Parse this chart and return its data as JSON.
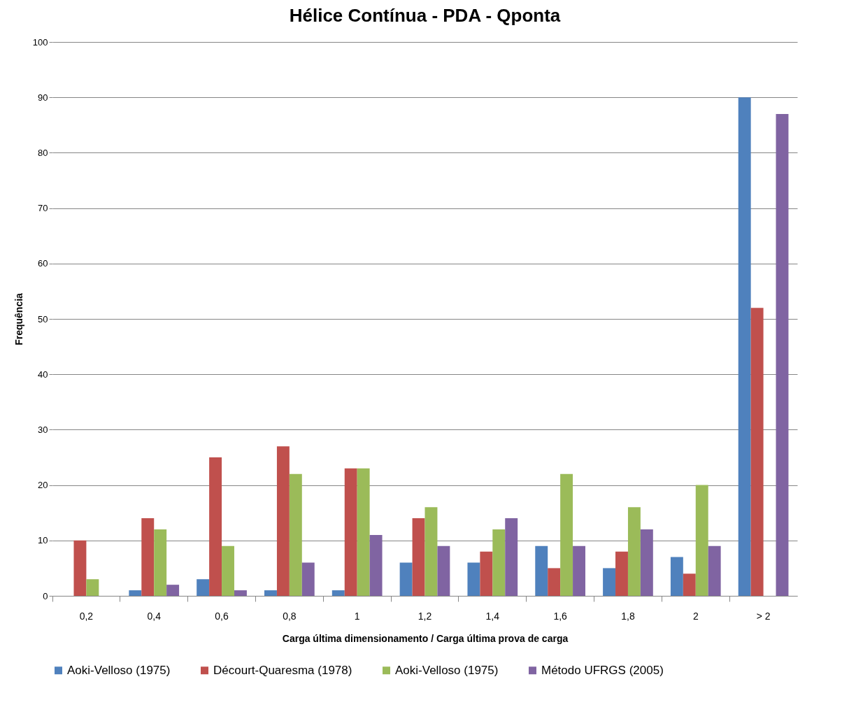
{
  "chart_data": {
    "type": "bar",
    "title": "Hélice Contínua - PDA - Qponta",
    "xlabel": "Carga última dimensionamento / Carga última prova de carga",
    "ylabel": "Frequência",
    "categories": [
      "0,2",
      "0,4",
      "0,6",
      "0,8",
      "1",
      "1,2",
      "1,4",
      "1,6",
      "1,8",
      "2",
      "> 2"
    ],
    "series": [
      {
        "name": "Aoki-Velloso (1975)",
        "color": "#4f81bd",
        "values": [
          0,
          1,
          3,
          1,
          1,
          6,
          6,
          9,
          5,
          7,
          90
        ]
      },
      {
        "name": "Décourt-Quaresma (1978)",
        "color": "#c0504d",
        "values": [
          10,
          14,
          25,
          27,
          23,
          14,
          8,
          5,
          8,
          4,
          52
        ]
      },
      {
        "name": "Aoki-Velloso (1975)",
        "color": "#9bbb59",
        "values": [
          3,
          12,
          9,
          22,
          23,
          16,
          12,
          22,
          16,
          20,
          0
        ]
      },
      {
        "name": "Método UFRGS (2005)",
        "color": "#8064a2",
        "values": [
          0,
          2,
          1,
          6,
          11,
          9,
          14,
          9,
          12,
          9,
          87
        ]
      }
    ],
    "ylim": [
      0,
      100
    ],
    "yticks": [
      0,
      10,
      20,
      30,
      40,
      50,
      60,
      70,
      80,
      90,
      100
    ],
    "grid": "y",
    "legend": "bottom"
  }
}
